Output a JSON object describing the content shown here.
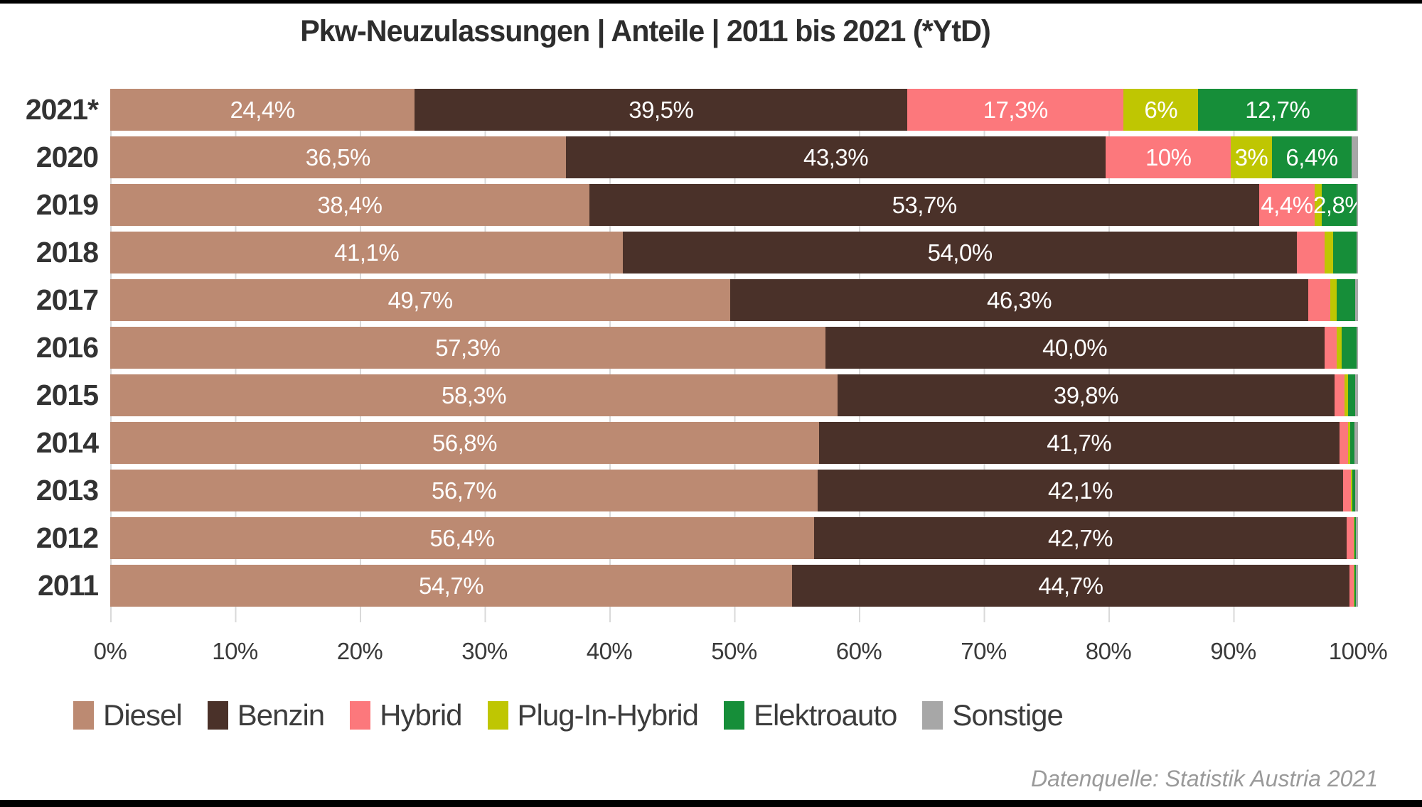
{
  "title": "Pkw-Neuzulassungen | Anteile | 2011 bis 2021 (*YtD)",
  "source": "Datenquelle: Statistik Austria 2021",
  "colors": {
    "diesel": "#bc8a72",
    "benzin": "#4a3129",
    "hybrid": "#fc787c",
    "plugin_hybrid": "#bfc602",
    "elektroauto": "#168e39",
    "sonstige": "#a7a7a7",
    "gridline": "#d9d9d9",
    "frame_bar": "#000000"
  },
  "chart_data": {
    "type": "bar",
    "orientation": "horizontal-stacked",
    "title": "Pkw-Neuzulassungen | Anteile | 2011 bis 2021 (*YtD)",
    "xlabel": "",
    "ylabel": "",
    "xlim": [
      0,
      100
    ],
    "grid": true,
    "legend_position": "bottom",
    "x_ticks": [
      "0%",
      "10%",
      "20%",
      "30%",
      "40%",
      "50%",
      "60%",
      "70%",
      "80%",
      "90%",
      "100%"
    ],
    "categories": [
      "2021*",
      "2020",
      "2019",
      "2018",
      "2017",
      "2016",
      "2015",
      "2014",
      "2013",
      "2012",
      "2011"
    ],
    "series": [
      {
        "name": "Diesel",
        "color": "#bc8a72",
        "values": [
          24.4,
          36.5,
          38.4,
          41.1,
          49.7,
          57.3,
          58.3,
          56.8,
          56.7,
          56.4,
          54.7
        ],
        "labels": [
          "24,4%",
          "36,5%",
          "38,4%",
          "41,1%",
          "49,7%",
          "57,3%",
          "58,3%",
          "56,8%",
          "56,7%",
          "56,4%",
          "54,7%"
        ]
      },
      {
        "name": "Benzin",
        "color": "#4a3129",
        "values": [
          39.5,
          43.3,
          53.7,
          54.0,
          46.3,
          40.0,
          39.8,
          41.7,
          42.1,
          42.7,
          44.7
        ],
        "labels": [
          "39,5%",
          "43,3%",
          "53,7%",
          "54,0%",
          "46,3%",
          "40,0%",
          "39,8%",
          "41,7%",
          "42,1%",
          "42,7%",
          "44,7%"
        ]
      },
      {
        "name": "Hybrid",
        "color": "#fc787c",
        "values": [
          17.3,
          10.0,
          4.4,
          2.2,
          1.8,
          1.0,
          0.8,
          0.7,
          0.65,
          0.55,
          0.35
        ],
        "labels": [
          "17,3%",
          "10%",
          "4,4%",
          "",
          "",
          "",
          "",
          "",
          "",
          "",
          ""
        ]
      },
      {
        "name": "Plug-In-Hybrid",
        "color": "#bfc602",
        "values": [
          6.0,
          3.3,
          0.6,
          0.7,
          0.5,
          0.4,
          0.3,
          0.15,
          0.1,
          0.05,
          0.05
        ],
        "labels": [
          "6%",
          "3%",
          "",
          "",
          "",
          "",
          "",
          "",
          "",
          "",
          ""
        ]
      },
      {
        "name": "Elektroauto",
        "color": "#168e39",
        "values": [
          12.7,
          6.4,
          2.8,
          1.9,
          1.5,
          1.2,
          0.6,
          0.35,
          0.25,
          0.15,
          0.15
        ],
        "labels": [
          "12,7%",
          "6,4%",
          "2,8%",
          "",
          "",
          "",
          "",
          "",
          "",
          "",
          ""
        ]
      },
      {
        "name": "Sonstige",
        "color": "#a7a7a7",
        "values": [
          0.1,
          0.5,
          0.1,
          0.1,
          0.2,
          0.1,
          0.2,
          0.3,
          0.2,
          0.15,
          0.15
        ],
        "labels": [
          "",
          "",
          "",
          "",
          "",
          "",
          "",
          "",
          "",
          "",
          ""
        ]
      }
    ]
  }
}
